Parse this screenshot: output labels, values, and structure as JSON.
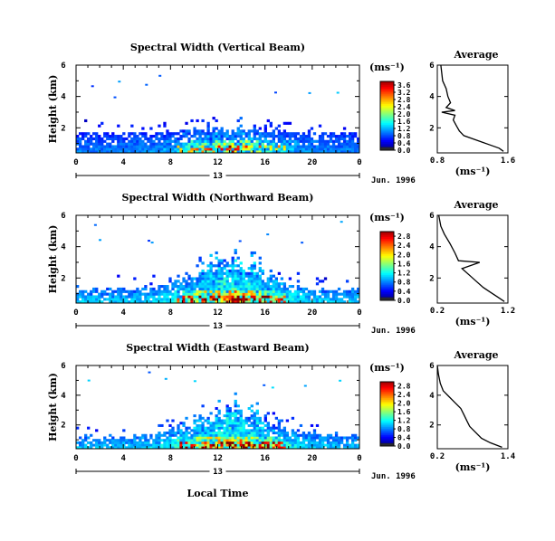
{
  "chart_data": [
    {
      "type": "heatmap",
      "title": "Spectral Width (Vertical Beam)",
      "ylabel": "Height (km)",
      "x_ticks": [
        "0",
        "4",
        "8",
        "12",
        "16",
        "20",
        "0"
      ],
      "y_ticks": [
        "2",
        "4",
        "6"
      ],
      "xlim": [
        0,
        24
      ],
      "ylim": [
        0.4,
        6
      ],
      "date_label": "13",
      "month_label": "Jun. 1996",
      "colorbar": {
        "unit": "(ms⁻¹)",
        "ticks": [
          "0.0",
          "0.4",
          "0.8",
          "1.2",
          "1.6",
          "2.0",
          "2.4",
          "2.8",
          "3.2",
          "3.6"
        ],
        "max": 3.8
      },
      "average": {
        "title": "Average",
        "xlabel": "(ms⁻¹)",
        "x_ticks": [
          "0.8",
          "1.6"
        ],
        "xlim": [
          0.8,
          1.6
        ],
        "y_ticks": [
          "2",
          "4",
          "6"
        ],
        "profile": [
          [
            1.55,
            0.5
          ],
          [
            1.5,
            0.7
          ],
          [
            1.4,
            0.9
          ],
          [
            1.3,
            1.1
          ],
          [
            1.2,
            1.3
          ],
          [
            1.1,
            1.5
          ],
          [
            1.05,
            1.8
          ],
          [
            1.02,
            2.1
          ],
          [
            0.98,
            2.5
          ],
          [
            1.0,
            2.8
          ],
          [
            0.85,
            3.0
          ],
          [
            1.0,
            3.1
          ],
          [
            0.9,
            3.3
          ],
          [
            0.95,
            3.6
          ],
          [
            0.92,
            4.0
          ],
          [
            0.9,
            4.5
          ],
          [
            0.86,
            5.0
          ],
          [
            0.85,
            5.5
          ],
          [
            0.84,
            6.0
          ]
        ]
      }
    },
    {
      "type": "heatmap",
      "title": "Spectral Width (Northward Beam)",
      "ylabel": "Height (km)",
      "x_ticks": [
        "0",
        "4",
        "8",
        "12",
        "16",
        "20",
        "0"
      ],
      "y_ticks": [
        "2",
        "4",
        "6"
      ],
      "xlim": [
        0,
        24
      ],
      "ylim": [
        0.4,
        6
      ],
      "date_label": "13",
      "month_label": "Jun. 1996",
      "colorbar": {
        "unit": "(ms⁻¹)",
        "ticks": [
          "0.0",
          "0.4",
          "0.8",
          "1.2",
          "1.6",
          "2.0",
          "2.4",
          "2.8"
        ],
        "max": 3.0
      },
      "average": {
        "title": "Average",
        "xlabel": "(ms⁻¹)",
        "x_ticks": [
          "0.2",
          "1.2"
        ],
        "xlim": [
          0.2,
          1.2
        ],
        "y_ticks": [
          "2",
          "4",
          "6"
        ],
        "profile": [
          [
            1.15,
            0.5
          ],
          [
            1.05,
            0.8
          ],
          [
            0.95,
            1.1
          ],
          [
            0.85,
            1.4
          ],
          [
            0.75,
            1.8
          ],
          [
            0.65,
            2.2
          ],
          [
            0.55,
            2.6
          ],
          [
            0.8,
            3.0
          ],
          [
            0.5,
            3.1
          ],
          [
            0.45,
            3.6
          ],
          [
            0.38,
            4.2
          ],
          [
            0.3,
            4.8
          ],
          [
            0.25,
            5.3
          ],
          [
            0.22,
            6.0
          ]
        ]
      }
    },
    {
      "type": "heatmap",
      "title": "Spectral Width (Eastward Beam)",
      "ylabel": "Height (km)",
      "xlabel": "Local Time",
      "x_ticks": [
        "0",
        "4",
        "8",
        "12",
        "16",
        "20",
        "0"
      ],
      "y_ticks": [
        "2",
        "4",
        "6"
      ],
      "xlim": [
        0,
        24
      ],
      "ylim": [
        0.4,
        6
      ],
      "date_label": "13",
      "month_label": "Jun. 1996",
      "colorbar": {
        "unit": "(ms⁻¹)",
        "ticks": [
          "0.0",
          "0.4",
          "0.8",
          "1.2",
          "1.6",
          "2.0",
          "2.4",
          "2.8"
        ],
        "max": 3.0
      },
      "average": {
        "title": "Average",
        "xlabel": "(ms⁻¹)",
        "x_ticks": [
          "0.2",
          "1.4"
        ],
        "xlim": [
          0.2,
          1.4
        ],
        "y_ticks": [
          "2",
          "4",
          "6"
        ],
        "profile": [
          [
            1.3,
            0.5
          ],
          [
            1.1,
            0.8
          ],
          [
            0.95,
            1.1
          ],
          [
            0.85,
            1.5
          ],
          [
            0.75,
            1.9
          ],
          [
            0.7,
            2.3
          ],
          [
            0.65,
            2.7
          ],
          [
            0.6,
            3.1
          ],
          [
            0.5,
            3.5
          ],
          [
            0.4,
            3.9
          ],
          [
            0.3,
            4.3
          ],
          [
            0.25,
            4.8
          ],
          [
            0.22,
            5.4
          ],
          [
            0.2,
            6.0
          ]
        ]
      }
    }
  ]
}
